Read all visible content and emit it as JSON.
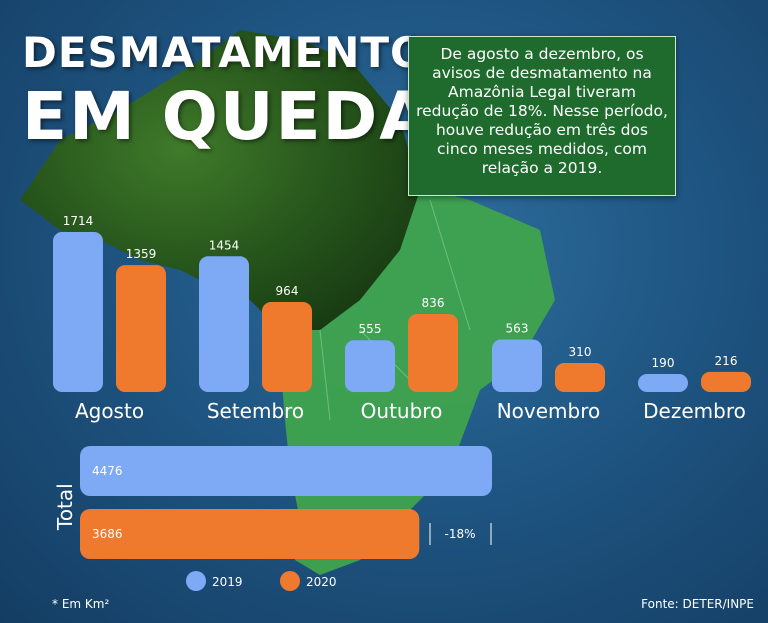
{
  "title_line1": "DESMATAMENTO",
  "title_line2": "EM QUEDA",
  "summary": "De agosto a dezembro, os avisos de desmatamento na Amazônia Legal tiveram redução de 18%. Nesse período, houve redução em três dos cinco meses medidos, com relação a 2019.",
  "footnote": "* Em Km²",
  "source": "Fonte: DETER/INPE",
  "colors": {
    "y2019": "#7eaaf5",
    "y2020": "#ef7a2e"
  },
  "chart_data": {
    "type": "bar",
    "title": "Desmatamento em queda",
    "unit": "Km²",
    "categories": [
      "Agosto",
      "Setembro",
      "Outubro",
      "Novembro",
      "Dezembro"
    ],
    "series": [
      {
        "name": "2019",
        "values": [
          1714,
          1454,
          555,
          563,
          190
        ]
      },
      {
        "name": "2020",
        "values": [
          1359,
          964,
          836,
          310,
          216
        ]
      }
    ],
    "total": {
      "label": "Total",
      "values": [
        4476,
        3686
      ],
      "change_label": "-18%"
    },
    "legend": [
      "2019",
      "2020"
    ]
  }
}
